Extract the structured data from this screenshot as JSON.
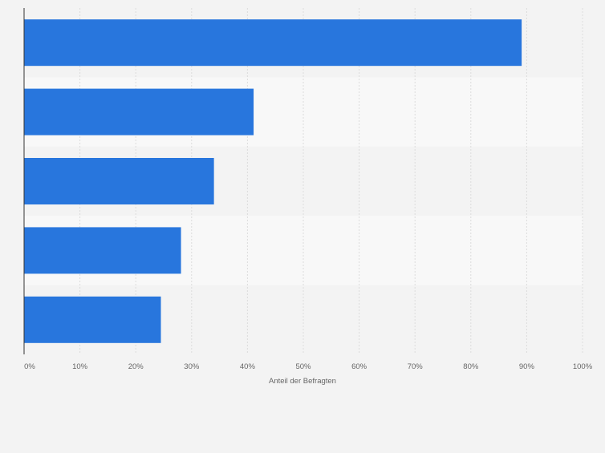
{
  "chart_data": {
    "type": "bar",
    "orientation": "horizontal",
    "title": "",
    "xlabel": "Anteil der Befragten",
    "ylabel": "",
    "xlim": [
      0,
      100
    ],
    "x_ticks": [
      0,
      10,
      20,
      30,
      40,
      50,
      60,
      70,
      80,
      90,
      100
    ],
    "x_tick_labels": [
      "0%",
      "10%",
      "20%",
      "30%",
      "40%",
      "50%",
      "60%",
      "70%",
      "80%",
      "90%",
      "100%"
    ],
    "categories": [
      "",
      "",
      "",
      "",
      ""
    ],
    "values": [
      89.1,
      41.1,
      34.0,
      28.1,
      24.5
    ],
    "grid": true,
    "colors": {
      "bar": "#2876dd",
      "background": "#f3f3f3",
      "band_alt": "#f8f8f8",
      "gridline": "#dcdcdc",
      "axis": "#333333",
      "tick_text": "#666666"
    }
  }
}
